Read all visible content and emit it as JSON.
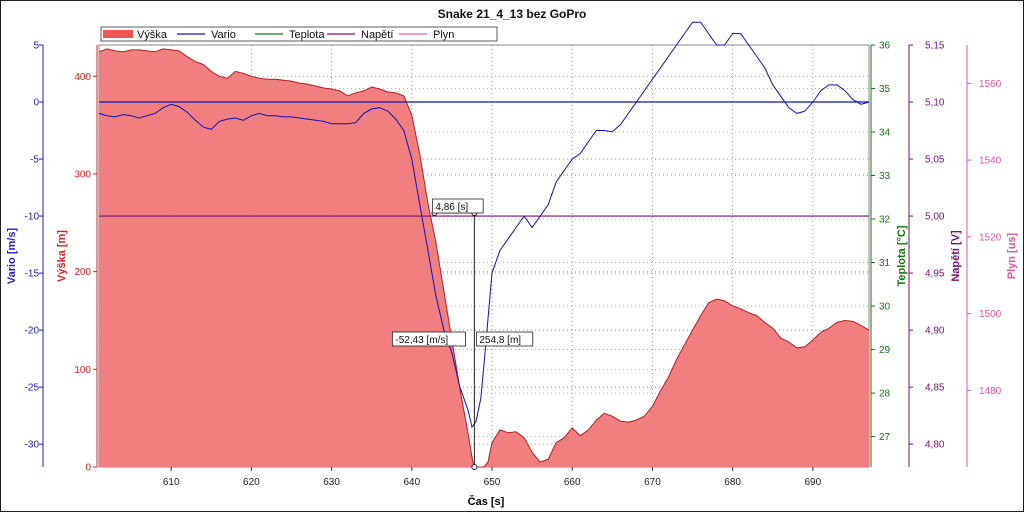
{
  "chart_data": {
    "type": "area",
    "title": "Snake 21_4_13 bez GoPro",
    "xlabel": "Čas [s]",
    "xlim": [
      601,
      697
    ],
    "xticks": [
      610,
      620,
      630,
      640,
      650,
      660,
      670,
      680,
      690
    ],
    "legend": {
      "placement": "top-left",
      "entries": [
        {
          "name": "Výška",
          "color": "#ee5555"
        },
        {
          "name": "Vario",
          "color": "#1111bb"
        },
        {
          "name": "Teplota",
          "color": "#117711"
        },
        {
          "name": "Napětí",
          "color": "#771177"
        },
        {
          "name": "Plyn",
          "color": "#ee66bb"
        }
      ]
    },
    "axes": {
      "vario": {
        "label": "Vario [m/s]",
        "color": "#1f1fcc",
        "side": "left",
        "lim": [
          -32,
          5
        ],
        "ticks": [
          {
            "v": 5,
            "t": "5"
          },
          {
            "v": 0,
            "t": "0"
          },
          {
            "v": -5,
            "t": "-5"
          },
          {
            "v": -10,
            "t": "-10"
          },
          {
            "v": -15,
            "t": "-15"
          },
          {
            "v": -20,
            "t": "-20"
          },
          {
            "v": -25,
            "t": "-25"
          },
          {
            "v": -30,
            "t": "-30"
          }
        ]
      },
      "vyska": {
        "label": "Výška [m]",
        "color": "#dd2222",
        "side": "left",
        "lim": [
          0,
          432
        ],
        "ticks": [
          {
            "v": 400,
            "t": "400"
          },
          {
            "v": 300,
            "t": "300"
          },
          {
            "v": 200,
            "t": "200"
          },
          {
            "v": 100,
            "t": "100"
          },
          {
            "v": 0,
            "t": "0"
          }
        ]
      },
      "teplota": {
        "label": "Teplota [°C]",
        "color": "#117711",
        "side": "right",
        "lim": [
          26.3,
          36
        ],
        "ticks": [
          {
            "v": 36,
            "t": "36"
          },
          {
            "v": 35,
            "t": "35"
          },
          {
            "v": 34,
            "t": "34"
          },
          {
            "v": 33,
            "t": "33"
          },
          {
            "v": 32,
            "t": "32"
          },
          {
            "v": 31,
            "t": "31"
          },
          {
            "v": 30,
            "t": "30"
          },
          {
            "v": 29,
            "t": "29"
          },
          {
            "v": 28,
            "t": "28"
          },
          {
            "v": 27,
            "t": "27"
          }
        ]
      },
      "napeti": {
        "label": "Napětí [V]",
        "color": "#771177",
        "side": "right",
        "lim": [
          4.78,
          5.15
        ],
        "ticks": [
          {
            "v": 5.15,
            "t": "5,15"
          },
          {
            "v": 5.1,
            "t": "5,10"
          },
          {
            "v": 5.05,
            "t": "5,05"
          },
          {
            "v": 5.0,
            "t": "5,00"
          },
          {
            "v": 4.95,
            "t": "4,95"
          },
          {
            "v": 4.9,
            "t": "4,90"
          },
          {
            "v": 4.85,
            "t": "4,85"
          },
          {
            "v": 4.8,
            "t": "4,80"
          }
        ]
      },
      "plyn": {
        "label": "Plyn [us]",
        "color": "#dd55aa",
        "side": "right",
        "lim": [
          1460,
          1570
        ],
        "ticks": [
          {
            "v": 1560,
            "t": "1560"
          },
          {
            "v": 1540,
            "t": "1540"
          },
          {
            "v": 1520,
            "t": "1520"
          },
          {
            "v": 1500,
            "t": "1500"
          },
          {
            "v": 1480,
            "t": "1480"
          }
        ]
      }
    },
    "series": [
      {
        "name": "Výška",
        "axis": "vyska",
        "x": [
          601,
          602,
          603,
          604,
          605,
          606,
          607,
          608,
          609,
          610,
          611,
          612,
          613,
          614,
          615,
          616,
          617,
          618,
          619,
          620,
          621,
          622,
          623,
          624,
          625,
          626,
          627,
          628,
          629,
          630,
          631,
          632,
          633,
          634,
          635,
          636,
          637,
          638,
          639,
          640,
          641,
          642,
          643,
          644,
          645,
          646,
          647,
          647.6,
          648,
          648.5,
          648.8,
          649,
          649.5,
          650,
          651,
          652,
          653,
          654,
          655,
          656,
          657,
          658,
          659,
          660,
          661,
          662,
          663,
          664,
          665,
          666,
          667,
          668,
          669,
          670,
          671,
          672,
          673,
          674,
          675,
          676,
          677,
          678,
          679,
          680,
          681,
          682,
          683,
          684,
          685,
          686,
          687,
          688,
          689,
          690,
          691,
          692,
          693,
          694,
          695,
          696,
          697
        ],
        "values": [
          425,
          428,
          426,
          425,
          427,
          427,
          426,
          425,
          428,
          427,
          426,
          420,
          415,
          412,
          405,
          400,
          398,
          405,
          403,
          400,
          398,
          397,
          397,
          396,
          395,
          393,
          392,
          390,
          388,
          387,
          385,
          380,
          383,
          385,
          389,
          387,
          384,
          383,
          380,
          360,
          320,
          270,
          230,
          180,
          130,
          80,
          35,
          5,
          0,
          0,
          0,
          0,
          5,
          25,
          38,
          35,
          36,
          30,
          15,
          5,
          8,
          25,
          30,
          40,
          32,
          38,
          48,
          55,
          52,
          47,
          46,
          48,
          52,
          62,
          78,
          92,
          110,
          125,
          140,
          155,
          168,
          172,
          170,
          165,
          162,
          158,
          155,
          148,
          142,
          132,
          128,
          122,
          123,
          130,
          138,
          142,
          148,
          150,
          149,
          145,
          140
        ]
      },
      {
        "name": "Vario",
        "axis": "vario",
        "x": [
          601,
          602,
          603,
          604,
          605,
          606,
          607,
          608,
          609,
          610,
          611,
          612,
          613,
          614,
          615,
          616,
          617,
          618,
          619,
          620,
          621,
          622,
          623,
          624,
          625,
          626,
          627,
          628,
          629,
          630,
          631,
          632,
          633,
          634,
          635,
          636,
          637,
          638,
          639,
          640,
          641,
          642,
          643,
          644,
          645,
          646,
          647,
          647.5,
          648,
          648.3,
          648.6,
          649,
          649.5,
          650,
          651,
          652,
          653,
          654,
          655,
          656,
          657,
          658,
          659,
          660,
          661,
          662,
          663,
          664,
          665,
          666,
          667,
          668,
          669,
          670,
          671,
          672,
          673,
          674,
          675,
          676,
          677,
          678,
          679,
          680,
          681,
          682,
          683,
          684,
          685,
          686,
          687,
          688,
          689,
          690,
          691,
          692,
          693,
          694,
          695,
          696,
          697
        ],
        "values": [
          -1,
          -1.2,
          -1.3,
          -1.1,
          -1.2,
          -1.4,
          -1.2,
          -1.0,
          -0.5,
          -0.2,
          -0.4,
          -0.9,
          -1.6,
          -2.2,
          -2.4,
          -1.7,
          -1.5,
          -1.4,
          -1.6,
          -1.2,
          -1.0,
          -1.2,
          -1.2,
          -1.3,
          -1.3,
          -1.4,
          -1.5,
          -1.6,
          -1.7,
          -1.9,
          -1.9,
          -1.9,
          -1.8,
          -1.0,
          -0.6,
          -0.5,
          -0.8,
          -1.5,
          -2.5,
          -5,
          -9,
          -13,
          -17,
          -20,
          -22,
          -25,
          -27,
          -28.5,
          -28,
          -27,
          -26,
          -23,
          -19,
          -15,
          -13,
          -12,
          -11,
          -10,
          -11,
          -10,
          -9,
          -7,
          -6,
          -5,
          -4.5,
          -3.5,
          -2.5,
          -2.5,
          -2.6,
          -2,
          -1,
          0,
          1,
          2,
          3,
          4,
          5,
          6,
          7,
          7,
          6,
          5,
          5,
          6,
          6,
          5,
          4,
          3,
          1.5,
          0.5,
          -0.5,
          -1,
          -0.8,
          0,
          1,
          1.5,
          1.5,
          1,
          0.2,
          -0.2,
          0
        ]
      }
    ],
    "reference_lines": [
      {
        "axis": "vario",
        "value": 0,
        "color": "#1111bb"
      },
      {
        "axis": "napeti",
        "value": 5.0,
        "color": "#771177"
      }
    ],
    "cursor": {
      "x": 647.8,
      "y_height": 254.8,
      "time_label": "4,86 [s]",
      "vario_label": "-52,43 [m/s]",
      "height_label": "254,8 [m]"
    }
  }
}
